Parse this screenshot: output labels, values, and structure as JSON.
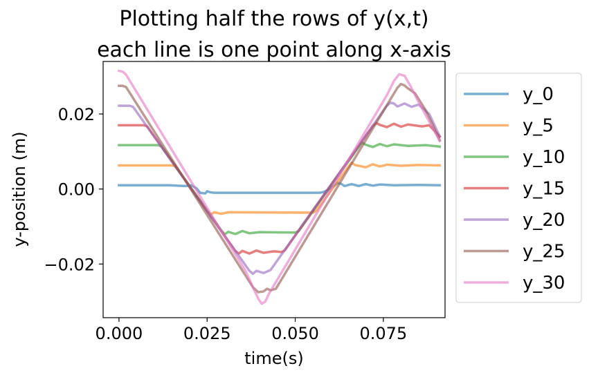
{
  "chart_data": {
    "type": "line",
    "title_lines": [
      "Plotting half the rows of y(x,t)",
      "each line is one point along x-axis"
    ],
    "xlabel": "time(s)",
    "ylabel": "y-position (m)",
    "xlim": [
      -0.0045,
      0.0925
    ],
    "ylim": [
      -0.0343,
      0.034
    ],
    "xticks": [
      0.0,
      0.025,
      0.05,
      0.075
    ],
    "xtick_labels": [
      "0.000",
      "0.025",
      "0.050",
      "0.075"
    ],
    "yticks": [
      -0.02,
      0.0,
      0.02
    ],
    "ytick_labels": [
      "−0.02",
      "0.00",
      "0.02"
    ],
    "grid": false,
    "legend_position": "outside-right",
    "t_end": 0.091,
    "series": [
      {
        "name": "y_0",
        "color": "#1f77b4",
        "values": [
          [
            0.0,
            0.001
          ],
          [
            0.014,
            0.001
          ],
          [
            0.019,
            0.0008
          ],
          [
            0.0205,
            0.001
          ],
          [
            0.022,
            0.0002
          ],
          [
            0.023,
            -0.001
          ],
          [
            0.0245,
            -0.0012
          ],
          [
            0.025,
            -0.0006
          ],
          [
            0.026,
            -0.0009
          ],
          [
            0.027,
            -0.001
          ],
          [
            0.04,
            -0.001
          ],
          [
            0.057,
            -0.001
          ],
          [
            0.058,
            -0.0008
          ],
          [
            0.059,
            -0.0004
          ],
          [
            0.06,
            0.0003
          ],
          [
            0.061,
            0.0008
          ],
          [
            0.062,
            0.0016
          ],
          [
            0.063,
            0.0014
          ],
          [
            0.064,
            0.0008
          ],
          [
            0.066,
            0.0013
          ],
          [
            0.068,
            0.0008
          ],
          [
            0.07,
            0.0013
          ],
          [
            0.072,
            0.0009
          ],
          [
            0.074,
            0.0012
          ],
          [
            0.078,
            0.001
          ],
          [
            0.085,
            0.0011
          ],
          [
            0.091,
            0.001
          ]
        ]
      },
      {
        "name": "y_5",
        "color": "#ff7f0e",
        "values": [
          [
            0.0,
            0.0063
          ],
          [
            0.015,
            0.0063
          ],
          [
            0.016,
            0.006
          ],
          [
            0.025,
            -0.0058
          ],
          [
            0.026,
            -0.0068
          ],
          [
            0.027,
            -0.0062
          ],
          [
            0.029,
            -0.0066
          ],
          [
            0.031,
            -0.0062
          ],
          [
            0.055,
            -0.0063
          ],
          [
            0.056,
            -0.0058
          ],
          [
            0.065,
            0.0058
          ],
          [
            0.066,
            0.007
          ],
          [
            0.067,
            0.0064
          ],
          [
            0.07,
            0.0058
          ],
          [
            0.072,
            0.0066
          ],
          [
            0.074,
            0.006
          ],
          [
            0.076,
            0.0065
          ],
          [
            0.08,
            0.0062
          ],
          [
            0.085,
            0.0064
          ],
          [
            0.091,
            0.0063
          ]
        ]
      },
      {
        "name": "y_10",
        "color": "#2ca02c",
        "values": [
          [
            0.0,
            0.0117
          ],
          [
            0.011,
            0.0117
          ],
          [
            0.012,
            0.0114
          ],
          [
            0.029,
            -0.011
          ],
          [
            0.03,
            -0.0121
          ],
          [
            0.031,
            -0.0114
          ],
          [
            0.033,
            -0.012
          ],
          [
            0.035,
            -0.0112
          ],
          [
            0.037,
            -0.0118
          ],
          [
            0.04,
            -0.0115
          ],
          [
            0.05,
            -0.0116
          ],
          [
            0.051,
            -0.0112
          ],
          [
            0.068,
            0.0112
          ],
          [
            0.069,
            0.0124
          ],
          [
            0.07,
            0.0118
          ],
          [
            0.072,
            0.0112
          ],
          [
            0.074,
            0.012
          ],
          [
            0.076,
            0.0114
          ],
          [
            0.078,
            0.0119
          ],
          [
            0.082,
            0.0115
          ],
          [
            0.087,
            0.0117
          ],
          [
            0.091,
            0.0113
          ]
        ]
      },
      {
        "name": "y_15",
        "color": "#d62728",
        "values": [
          [
            0.0,
            0.017
          ],
          [
            0.007,
            0.017
          ],
          [
            0.008,
            0.0167
          ],
          [
            0.033,
            -0.0165
          ],
          [
            0.034,
            -0.0172
          ],
          [
            0.035,
            -0.0165
          ],
          [
            0.037,
            -0.0172
          ],
          [
            0.039,
            -0.0164
          ],
          [
            0.041,
            -0.017
          ],
          [
            0.044,
            -0.0166
          ],
          [
            0.046,
            -0.0168
          ],
          [
            0.047,
            -0.0164
          ],
          [
            0.072,
            0.0168
          ],
          [
            0.073,
            0.0176
          ],
          [
            0.074,
            0.0171
          ],
          [
            0.076,
            0.0165
          ],
          [
            0.078,
            0.0174
          ],
          [
            0.08,
            0.0166
          ],
          [
            0.082,
            0.0172
          ],
          [
            0.086,
            0.0167
          ],
          [
            0.088,
            0.017
          ],
          [
            0.091,
            0.014
          ]
        ]
      },
      {
        "name": "y_20",
        "color": "#9467bd",
        "values": [
          [
            0.0,
            0.0222
          ],
          [
            0.003,
            0.0222
          ],
          [
            0.004,
            0.0219
          ],
          [
            0.037,
            -0.0218
          ],
          [
            0.038,
            -0.0226
          ],
          [
            0.039,
            -0.0218
          ],
          [
            0.041,
            -0.0224
          ],
          [
            0.043,
            -0.0216
          ],
          [
            0.076,
            0.0222
          ],
          [
            0.077,
            0.023
          ],
          [
            0.078,
            0.0228
          ],
          [
            0.079,
            0.022
          ],
          [
            0.081,
            0.0228
          ],
          [
            0.083,
            0.0219
          ],
          [
            0.085,
            0.0225
          ],
          [
            0.088,
            0.02
          ],
          [
            0.091,
            0.014
          ]
        ]
      },
      {
        "name": "y_25",
        "color": "#8c564b",
        "values": [
          [
            0.0,
            0.0275
          ],
          [
            0.001,
            0.0275
          ],
          [
            0.002,
            0.0272
          ],
          [
            0.038,
            -0.0262
          ],
          [
            0.0395,
            -0.0275
          ],
          [
            0.041,
            -0.0273
          ],
          [
            0.042,
            -0.0266
          ],
          [
            0.043,
            -0.027
          ],
          [
            0.0445,
            -0.0266
          ],
          [
            0.079,
            0.027
          ],
          [
            0.08,
            0.028
          ],
          [
            0.081,
            0.0276
          ],
          [
            0.082,
            0.0268
          ],
          [
            0.084,
            0.0255
          ],
          [
            0.087,
            0.021
          ],
          [
            0.091,
            0.013
          ]
        ]
      },
      {
        "name": "y_30",
        "color": "#e377c2",
        "values": [
          [
            0.0,
            0.0315
          ],
          [
            0.001,
            0.0313
          ],
          [
            0.002,
            0.0305
          ],
          [
            0.036,
            -0.022
          ],
          [
            0.038,
            -0.0262
          ],
          [
            0.0395,
            -0.0292
          ],
          [
            0.0405,
            -0.0306
          ],
          [
            0.0415,
            -0.03
          ],
          [
            0.0425,
            -0.028
          ],
          [
            0.076,
            0.025
          ],
          [
            0.078,
            0.0288
          ],
          [
            0.0795,
            0.0306
          ],
          [
            0.081,
            0.0302
          ],
          [
            0.0825,
            0.0278
          ],
          [
            0.085,
            0.0232
          ],
          [
            0.088,
            0.018
          ],
          [
            0.091,
            0.0128
          ]
        ]
      }
    ]
  }
}
